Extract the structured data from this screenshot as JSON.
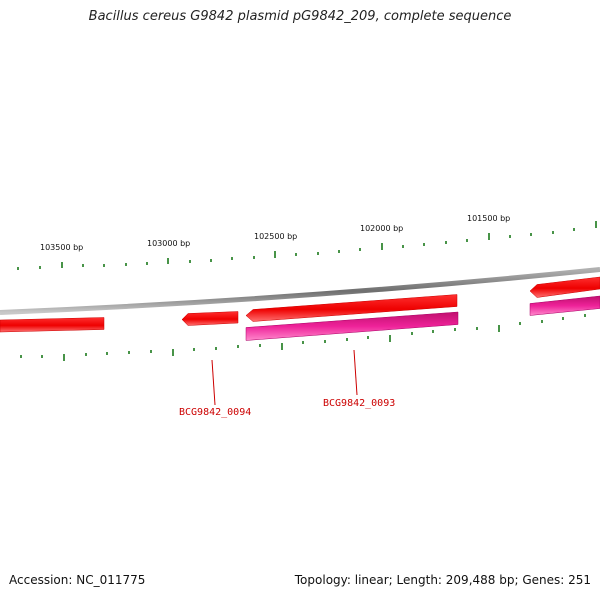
{
  "title": "Bacillus cereus G9842 plasmid pG9842_209, complete sequence",
  "accession_text": "Accession: NC_011775",
  "summary_text": "Topology: linear; Length: 209,488 bp; Genes: 251",
  "scale_labels": [
    "103500 bp",
    "103000 bp",
    "102500 bp",
    "102000 bp",
    "101500 bp"
  ],
  "gene_labels": [
    "BCG9842_0094",
    "BCG9842_0093"
  ],
  "colors": {
    "backbone": "#8a8a8a",
    "gene_forward": "#ff2020",
    "gene_cds": "#ee2299",
    "tick": "#1a7a1a",
    "gene_label": "#cc0000"
  }
}
